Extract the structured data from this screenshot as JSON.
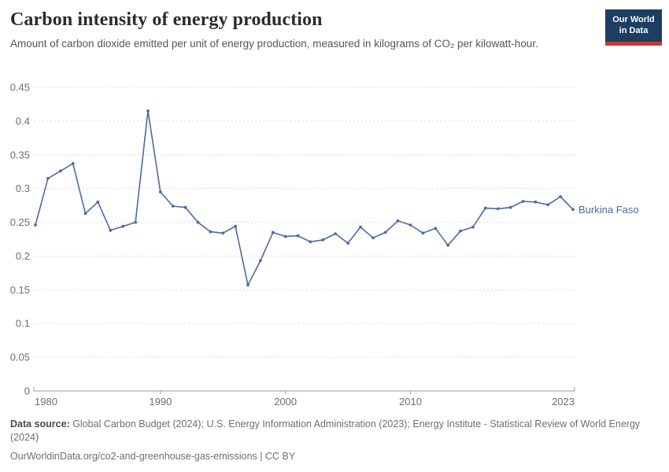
{
  "header": {
    "title": "Carbon intensity of energy production",
    "subtitle": "Amount of carbon dioxide emitted per unit of energy production, measured in kilograms of CO₂ per kilowatt-hour."
  },
  "logo": {
    "line1": "Our World",
    "line2": "in Data",
    "bg_color": "#1d3d63",
    "accent_color": "#c5392e"
  },
  "chart_data": {
    "type": "line",
    "title": "Carbon intensity of energy production",
    "xlabel": "",
    "ylabel": "kilograms of CO₂ per kilowatt-hour",
    "x": [
      1980,
      1981,
      1982,
      1983,
      1984,
      1985,
      1986,
      1987,
      1988,
      1989,
      1990,
      1991,
      1992,
      1993,
      1994,
      1995,
      1996,
      1997,
      1998,
      1999,
      2000,
      2001,
      2002,
      2003,
      2004,
      2005,
      2006,
      2007,
      2008,
      2009,
      2010,
      2011,
      2012,
      2013,
      2014,
      2015,
      2016,
      2017,
      2018,
      2019,
      2020,
      2021,
      2022,
      2023
    ],
    "series": [
      {
        "name": "Burkina Faso",
        "color": "#4c6aa5",
        "values": [
          0.246,
          0.315,
          0.326,
          0.337,
          0.263,
          0.28,
          0.238,
          0.244,
          0.25,
          0.415,
          0.295,
          0.274,
          0.272,
          0.25,
          0.236,
          0.234,
          0.244,
          0.157,
          0.193,
          0.235,
          0.229,
          0.23,
          0.221,
          0.224,
          0.233,
          0.219,
          0.243,
          0.227,
          0.235,
          0.252,
          0.246,
          0.234,
          0.241,
          0.216,
          0.237,
          0.243,
          0.271,
          0.27,
          0.272,
          0.281,
          0.28,
          0.276,
          0.288,
          0.269
        ]
      }
    ],
    "xlim": [
      1980,
      2023
    ],
    "ylim": [
      0,
      0.45
    ],
    "yticks": [
      0,
      0.05,
      0.1,
      0.15,
      0.2,
      0.25,
      0.3,
      0.35,
      0.4,
      0.45
    ],
    "ytick_labels": [
      "0",
      "0.05",
      "0.1",
      "0.15",
      "0.2",
      "0.25",
      "0.3",
      "0.35",
      "0.4",
      "0.45"
    ],
    "xticks": [
      1980,
      1990,
      2000,
      2010,
      2023
    ],
    "grid": "horizontal-dashed",
    "grid_color": "#dcdcdc",
    "axis_color": "#9a9a9a",
    "tick_label_color": "#6e6e6e",
    "legend_position": "end-of-line-label"
  },
  "footer": {
    "source_label": "Data source:",
    "source_text": " Global Carbon Budget (2024); U.S. Energy Information Administration (2023); Energy Institute - Statistical Review of World Energy (2024)",
    "license_text": "OurWorldinData.org/co2-and-greenhouse-gas-emissions | CC BY"
  }
}
